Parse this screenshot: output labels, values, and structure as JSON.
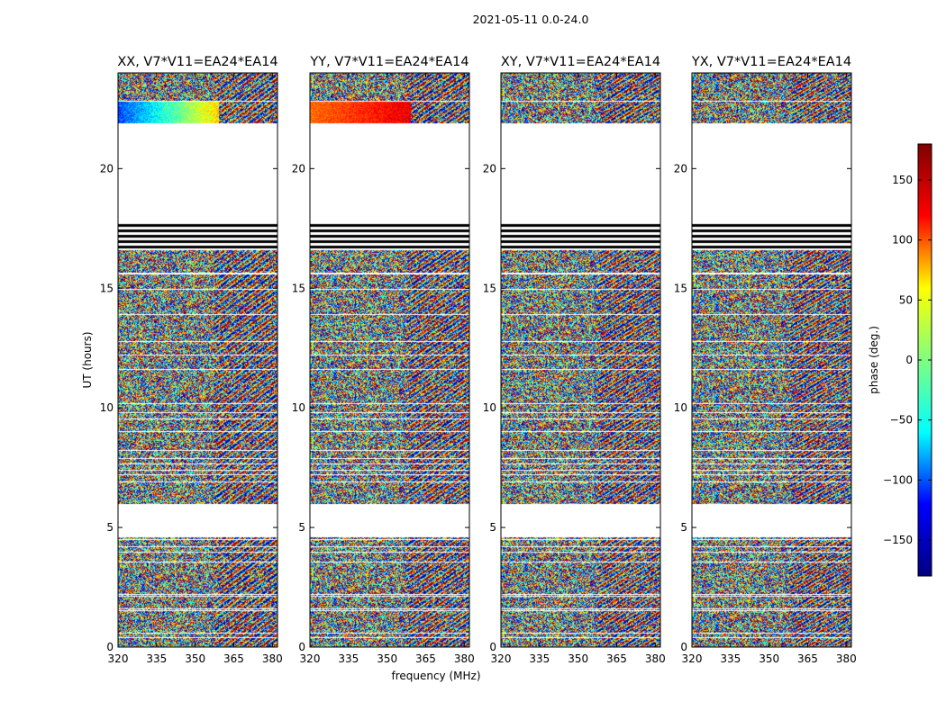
{
  "chart_data": {
    "type": "heatmap",
    "suptitle": "2021-05-11 0.0-24.0",
    "xlabel": "frequency (MHz)",
    "ylabel": "UT (hours)",
    "xlim": [
      320,
      382
    ],
    "xticks": [
      320,
      335,
      350,
      365,
      380
    ],
    "ylim": [
      0,
      24
    ],
    "yticks": [
      0,
      5,
      10,
      15,
      20
    ],
    "colorbar": {
      "label": "phase (deg.)",
      "range": [
        -180,
        180
      ],
      "ticks": [
        150,
        100,
        50,
        0,
        -50,
        -100,
        -150
      ],
      "tick_labels": [
        "150",
        "100",
        "50",
        "0",
        "−50",
        "−100",
        "−150"
      ],
      "colormap": "jet",
      "colors": [
        "#000080",
        "#0000ff",
        "#00ffff",
        "#80ff80",
        "#ffff00",
        "#ff0000",
        "#800000"
      ]
    },
    "panels": [
      {
        "title": "XX, V7*V11=EA24*EA14",
        "product": "XX"
      },
      {
        "title": "YY, V7*V11=EA24*EA14",
        "product": "YY"
      },
      {
        "title": "XY, V7*V11=EA24*EA14",
        "product": "XY"
      },
      {
        "title": "YX, V7*V11=EA24*EA14",
        "product": "YX"
      }
    ],
    "blank_ut_ranges": [
      [
        4.6,
        6.0
      ],
      [
        17.8,
        21.9
      ]
    ],
    "flagged_ut_ranges": [
      [
        16.6,
        17.8
      ]
    ],
    "observed_ut_ranges": [
      [
        0.0,
        4.6
      ],
      [
        6.0,
        16.6
      ],
      [
        21.9,
        24.0
      ]
    ]
  }
}
